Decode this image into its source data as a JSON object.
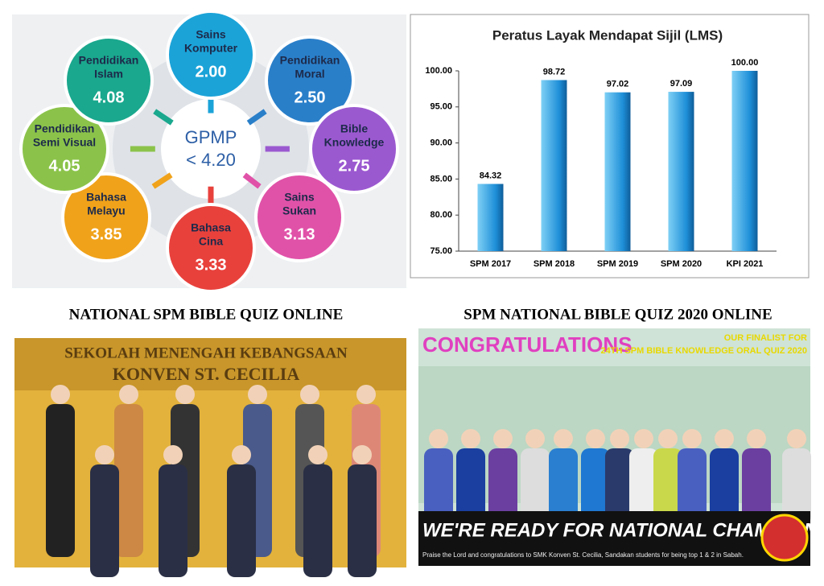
{
  "diagram": {
    "center": [
      "GPMP",
      "< 4.20"
    ],
    "nodes": [
      {
        "lines": [
          "Sains",
          "Komputer"
        ],
        "value": "2.00"
      },
      {
        "lines": [
          "Pendidikan",
          "Moral"
        ],
        "value": "2.50"
      },
      {
        "lines": [
          "Bible",
          "Knowledge"
        ],
        "value": "2.75"
      },
      {
        "lines": [
          "Sains",
          "Sukan"
        ],
        "value": "3.13"
      },
      {
        "lines": [
          "Bahasa",
          "Cina"
        ],
        "value": "3.33"
      },
      {
        "lines": [
          "Bahasa",
          "Melayu"
        ],
        "value": "3.85"
      },
      {
        "lines": [
          "Pendidikan",
          "Semi Visual"
        ],
        "value": "4.05"
      },
      {
        "lines": [
          "Pendidikan",
          "Islam"
        ],
        "value": "4.08"
      }
    ]
  },
  "chart_data": {
    "type": "bar",
    "title": "Peratus Layak Mendapat Sijil (LMS)",
    "categories": [
      "SPM 2017",
      "SPM 2018",
      "SPM 2019",
      "SPM 2020",
      "KPI 2021"
    ],
    "values": [
      84.32,
      98.72,
      97.02,
      97.09,
      100
    ],
    "value_labels": [
      "84.32",
      "98.72",
      "97.02",
      "97.09",
      "100.00"
    ],
    "color": "#1e90d6",
    "ylim": [
      75,
      100
    ],
    "yticks": [
      {
        "value": 75,
        "label": "75.00"
      },
      {
        "value": 80,
        "label": "80.00"
      },
      {
        "value": 85,
        "label": "85.00"
      },
      {
        "value": 90,
        "label": "90.00"
      },
      {
        "value": 95,
        "label": "95.00"
      },
      {
        "value": 100,
        "label": "100.00"
      }
    ]
  },
  "photos": [
    {
      "caption": "NATIONAL SPM BIBLE QUIZ ONLINE",
      "signs": [
        "SEKOLAH MENENGAH KEBANGSAAN",
        "KONVEN ST. CECILIA"
      ]
    },
    {
      "caption": "SPM NATIONAL BIBLE QUIZ 2020 ONLINE",
      "signs": [
        "CONGRATULATIONS",
        "OUR FINALIST FOR",
        "24TH SPM BIBLE KNOWLEDGE ORAL QUIZ 2020",
        "WE'RE READY FOR NATIONAL CHAMPION!",
        "Praise the Lord and congratulations to SMK Konven St. Cecilia, Sandakan students for being top 1 & 2 in Sabah."
      ]
    }
  ]
}
